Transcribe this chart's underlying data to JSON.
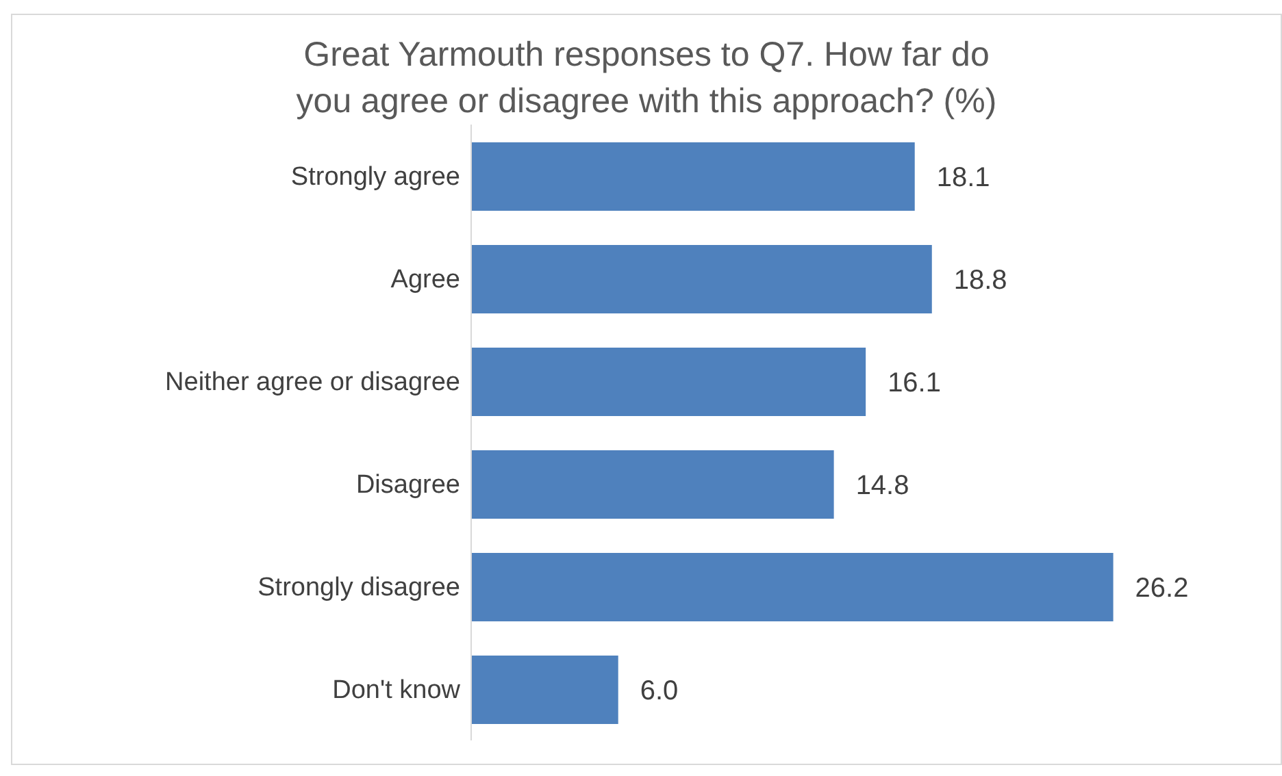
{
  "chart_data": {
    "type": "bar",
    "orientation": "horizontal",
    "title": "Great Yarmouth responses to Q7. How far do you agree or disagree with this approach? (%)",
    "categories": [
      "Strongly agree",
      "Agree",
      "Neither agree or disagree",
      "Disagree",
      "Strongly disagree",
      "Don't know"
    ],
    "values": [
      18.1,
      18.8,
      16.1,
      14.8,
      26.2,
      6.0
    ],
    "value_labels": [
      "18.1",
      "18.8",
      "16.1",
      "14.8",
      "26.2",
      "6.0"
    ],
    "color": "#4f81bd",
    "grid": false,
    "legend": false
  }
}
